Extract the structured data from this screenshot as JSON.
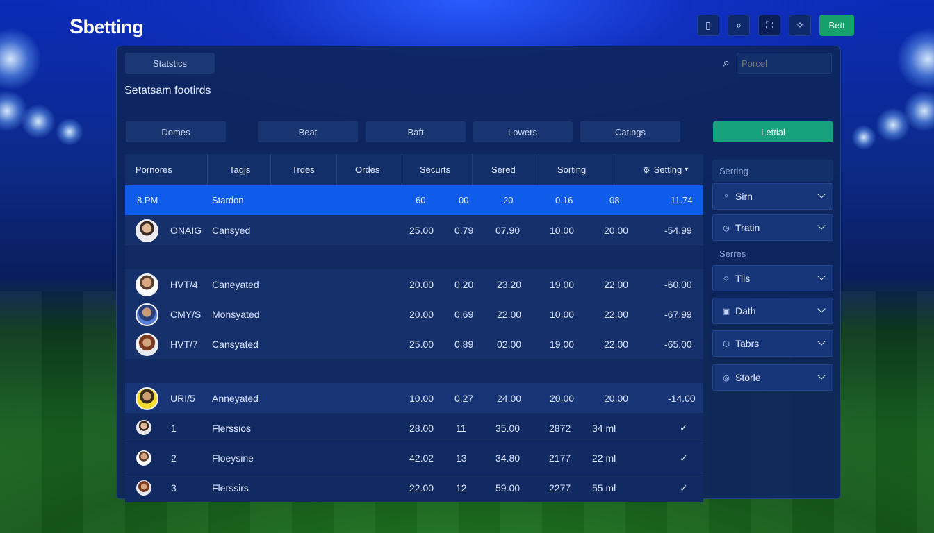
{
  "brand": {
    "logo_mark": "S",
    "logo_text": "betting"
  },
  "top_actions": [
    {
      "icon": "phone-icon",
      "glyph": "▯"
    },
    {
      "icon": "search-icon",
      "glyph": "⌕"
    },
    {
      "icon": "gamepad-icon",
      "glyph": "⛶"
    },
    {
      "icon": "sparkle-icon",
      "glyph": "✧"
    }
  ],
  "top_bet_label": "Bett",
  "panel": {
    "tab_label": "Statstics",
    "search_placeholder": "Porcel",
    "title": "Setatsam footirds"
  },
  "filters": [
    "Domes",
    "Beat",
    "Baft",
    "Lowers",
    "Catings"
  ],
  "active_filter": "Lettial",
  "table": {
    "headers": [
      "Pornores",
      "Tagjs",
      "Trdes",
      "Ordes",
      "Securts",
      "Sered",
      "Sorting",
      "Setting"
    ],
    "highlight_row": [
      "8.PM",
      "Stardon",
      "60",
      "00",
      "20",
      "0.16",
      "08",
      "11.74"
    ],
    "rows": [
      {
        "code": "ONAIG",
        "status": "Cansyed",
        "v": [
          "25.00",
          "0.79",
          "07.90",
          "10.00",
          "20.00",
          "-54.99"
        ]
      },
      {
        "code": "HVT/4",
        "status": "Caneyated",
        "v": [
          "20.00",
          "0.20",
          "23.20",
          "19.00",
          "22.00",
          "-60.00"
        ]
      },
      {
        "code": "CMY/S",
        "status": "Monsyated",
        "v": [
          "20.00",
          "0.69",
          "22.00",
          "10.00",
          "22.00",
          "-67.99"
        ]
      },
      {
        "code": "HVT/7",
        "status": "Cansyated",
        "v": [
          "25.00",
          "0.89",
          "02.00",
          "19.00",
          "22.00",
          "-65.00"
        ]
      },
      {
        "code": "URI/5",
        "status": "Anneyated",
        "v": [
          "10.00",
          "0.27",
          "24.00",
          "20.00",
          "20.00",
          "-14.00"
        ]
      }
    ],
    "ranked": [
      {
        "rank": "1",
        "name": "Flerssios",
        "v": [
          "28.00",
          "11",
          "35.00",
          "2872",
          "34 ml"
        ]
      },
      {
        "rank": "2",
        "name": "Floeysine",
        "v": [
          "42.02",
          "13",
          "34.80",
          "2177",
          "22 ml"
        ]
      },
      {
        "rank": "3",
        "name": "Flerssirs",
        "v": [
          "22.00",
          "12",
          "59.00",
          "2277",
          "55 ml"
        ]
      }
    ]
  },
  "sidebar": {
    "heading": "Serring",
    "section2": "Serres",
    "items": [
      {
        "label": "Sirn",
        "icon": "pin-icon",
        "glyph": "♀"
      },
      {
        "label": "Tratin",
        "icon": "clock-icon",
        "glyph": "◷"
      },
      {
        "label": "Tils",
        "icon": "tag-icon",
        "glyph": "⬦"
      },
      {
        "label": "Dath",
        "icon": "calendar-icon",
        "glyph": "▣"
      },
      {
        "label": "Tabrs",
        "icon": "shield-icon",
        "glyph": "⬡"
      },
      {
        "label": "Storle",
        "icon": "circle-icon",
        "glyph": "◎"
      }
    ]
  }
}
